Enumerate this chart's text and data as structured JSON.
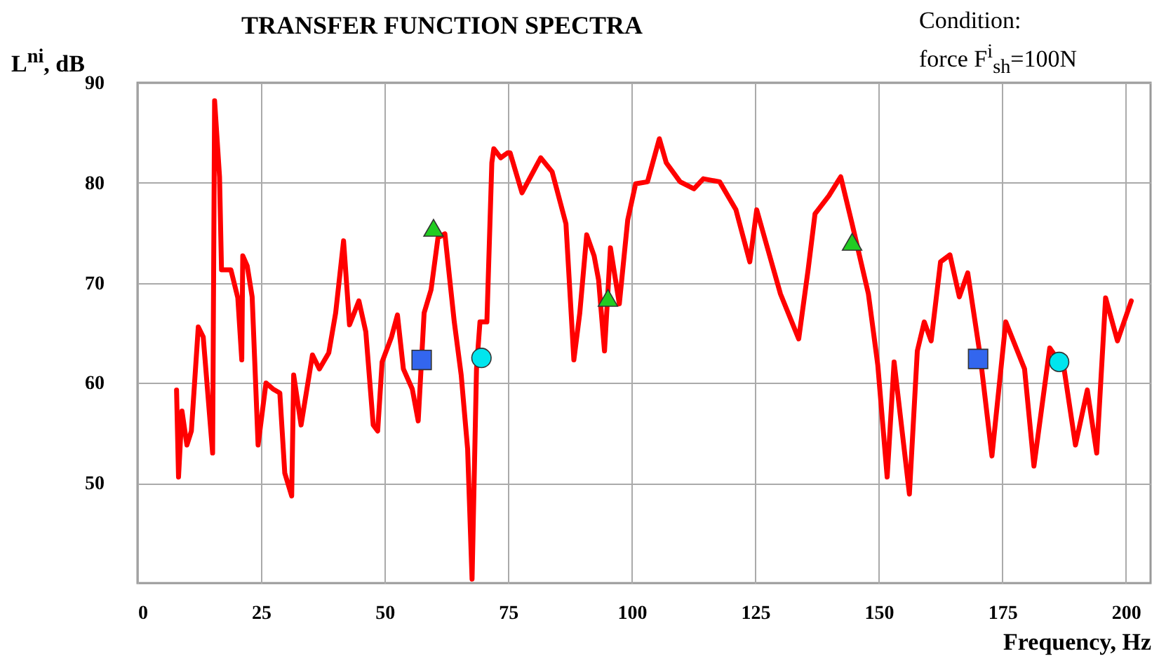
{
  "chart_data": {
    "type": "line",
    "title": "TRANSFER FUNCTION SPECTRA",
    "ylabel": "L$^{ni}$, dB",
    "xlabel": "Frequency, Hz",
    "annotations": [
      "Condition:\nforce F$^{i}$$_{sh}$=100N"
    ],
    "xlim": [
      0,
      205
    ],
    "xticks": [
      0,
      25,
      50,
      75,
      100,
      125,
      150,
      175,
      200
    ],
    "ylim": [
      40,
      90
    ],
    "yticks": [
      50,
      60,
      70,
      80,
      90
    ],
    "grid": true,
    "series": [
      {
        "type": "line",
        "color": "#ff0000",
        "marker": "none",
        "x": [
          7.9,
          8.3,
          9.0,
          10.0,
          10.9,
          12.3,
          13.3,
          15.2,
          15.6,
          16.6,
          17.0,
          18.9,
          20.3,
          21.1,
          21.3,
          22.2,
          23.2,
          24.4,
          26.0,
          27.4,
          28.8,
          29.8,
          31.2,
          31.6,
          33.1,
          35.4,
          36.8,
          38.7,
          40.1,
          41.7,
          42.9,
          44.8,
          46.2,
          47.7,
          48.6,
          49.5,
          51.4,
          52.6,
          53.8,
          55.6,
          56.8,
          58.0,
          59.4,
          60.8,
          62.2,
          64.1,
          65.5,
          66.8,
          67.7,
          68.6,
          69.3,
          70.7,
          71.7,
          72.1,
          73.5,
          74.9,
          75.4,
          77.8,
          81.6,
          83.9,
          86.7,
          88.3,
          89.5,
          90.9,
          92.4,
          93.3,
          94.5,
          95.7,
          97.5,
          99.2,
          100.8,
          103.2,
          105.6,
          107.0,
          109.8,
          112.6,
          114.5,
          117.8,
          121.1,
          123.9,
          125.3,
          127.7,
          130.1,
          133.8,
          135.7,
          137.1,
          139.9,
          142.3,
          144.6,
          147.9,
          149.8,
          151.7,
          153.1,
          156.2,
          157.8,
          159.2,
          160.6,
          162.5,
          164.4,
          166.3,
          168.0,
          170.5,
          172.9,
          175.7,
          179.5,
          181.4,
          184.6,
          187.5,
          189.8,
          192.2,
          194.1,
          195.9,
          198.3,
          201.1
        ],
        "values": [
          59.3,
          50.6,
          57.2,
          53.8,
          55.2,
          65.6,
          64.6,
          53.0,
          88.2,
          80.6,
          71.3,
          71.3,
          68.5,
          62.3,
          72.7,
          71.7,
          68.6,
          53.8,
          60,
          59.4,
          59.0,
          51,
          48.7,
          60.8,
          55.8,
          62.8,
          61.4,
          63,
          67,
          74.2,
          65.8,
          68.2,
          65.1,
          55.8,
          55.2,
          62.1,
          64.6,
          66.8,
          61.4,
          59.4,
          56.2,
          67,
          69.3,
          74.5,
          74.9,
          66.1,
          60.8,
          53.4,
          40.4,
          61.4,
          66.1,
          66.1,
          82.0,
          83.4,
          82.5,
          83.0,
          83,
          79,
          82.5,
          81.1,
          75.9,
          62.3,
          67,
          74.8,
          72.7,
          70.3,
          63.2,
          73.5,
          67.9,
          76.3,
          79.9,
          80.1,
          84.4,
          82,
          80.1,
          79.4,
          80.4,
          80.1,
          77.3,
          72.1,
          77.3,
          73.1,
          68.9,
          64.4,
          71.3,
          76.9,
          78.7,
          80.6,
          75.9,
          68.9,
          61.8,
          50.6,
          62.1,
          48.9,
          63.2,
          66.1,
          64.2,
          72.1,
          72.8,
          68.6,
          71,
          62.8,
          52.7,
          66.1,
          61.4,
          51.7,
          63.5,
          61.4,
          53.8,
          59.3,
          53,
          68.5,
          64.2,
          68.2
        ]
      },
      {
        "type": "scatter",
        "color": "#3366ee",
        "marker": "square",
        "x": [
          57.5,
          170.1
        ],
        "values": [
          62.3,
          62.4
        ]
      },
      {
        "type": "scatter",
        "color": "#22cc22",
        "marker": "triangle",
        "x": [
          59.9,
          95.2,
          144.6
        ],
        "values": [
          75.5,
          68.5,
          74.1
        ]
      },
      {
        "type": "scatter",
        "color": "#00e5ee",
        "marker": "circle",
        "x": [
          69.6,
          186.5
        ],
        "values": [
          62.5,
          62.1
        ]
      }
    ]
  }
}
